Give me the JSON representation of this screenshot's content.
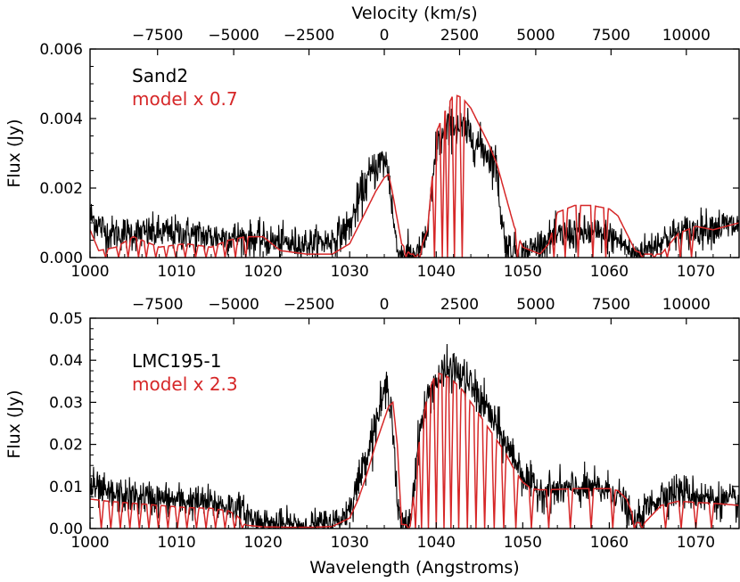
{
  "chart_data": [
    {
      "type": "line",
      "panel": "top",
      "top_axis_label": "Velocity (km/s)",
      "xlabel": "",
      "ylabel": "Flux (Jy)",
      "xlim": [
        1000,
        1075
      ],
      "ylim": [
        0,
        0.006
      ],
      "x_ticks": [
        "1000",
        "1010",
        "1020",
        "1030",
        "1040",
        "1050",
        "1060",
        "1070"
      ],
      "y_ticks": [
        "0.000",
        "0.002",
        "0.004",
        "0.006"
      ],
      "velocity_ticks": [
        "−7500",
        "−5000",
        "−2500",
        "0",
        "2500",
        "5000",
        "7500",
        "10000"
      ],
      "legend": [
        "Sand2",
        "model x 0.7"
      ],
      "series": [
        {
          "name": "Sand2",
          "color": "#000000",
          "noise": 0.0003,
          "x": [
            1000,
            1002,
            1005,
            1008,
            1011,
            1014,
            1017,
            1020,
            1023,
            1026,
            1028,
            1030,
            1031,
            1032,
            1033,
            1034,
            1034.5,
            1035,
            1035.5,
            1036,
            1037,
            1038,
            1039,
            1039.5,
            1040,
            1041,
            1042,
            1043,
            1044,
            1045,
            1046,
            1047,
            1047.5,
            1048,
            1049,
            1050,
            1052,
            1054,
            1056,
            1058,
            1060,
            1061,
            1062,
            1062.5,
            1063,
            1064,
            1066,
            1068,
            1070,
            1072,
            1075
          ],
          "y": [
            0.0012,
            0.0007,
            0.0007,
            0.0007,
            0.0007,
            0.0006,
            0.0006,
            0.0005,
            0.0004,
            0.0004,
            0.0005,
            0.0009,
            0.0016,
            0.0022,
            0.0026,
            0.0028,
            0.0025,
            0.0012,
            0.0002,
            0.0001,
            0.0001,
            0.0001,
            0.0007,
            0.0018,
            0.0032,
            0.0036,
            0.0038,
            0.0037,
            0.0035,
            0.0032,
            0.003,
            0.0026,
            0.0012,
            0.0004,
            0.0002,
            0.0001,
            0.0004,
            0.0006,
            0.0007,
            0.0007,
            0.0006,
            0.0005,
            0.0003,
            0.0001,
            0.0001,
            0.0002,
            0.0005,
            0.0007,
            0.0008,
            0.0009,
            0.0009
          ]
        },
        {
          "name": "model x 0.7",
          "color": "#d62728",
          "x": [
            1000,
            1001,
            1003,
            1005,
            1008,
            1011,
            1014,
            1016,
            1018,
            1020,
            1022,
            1025,
            1028,
            1030,
            1031,
            1032,
            1033,
            1034,
            1034.5,
            1035,
            1036,
            1037,
            1038,
            1039,
            1040,
            1041,
            1042,
            1043,
            1044,
            1045,
            1046,
            1047,
            1048,
            1049,
            1050,
            1052,
            1053,
            1054,
            1056,
            1058,
            1060,
            1061,
            1062,
            1063,
            1064,
            1066,
            1068,
            1070,
            1072,
            1075
          ],
          "y": [
            0.0008,
            0.0002,
            0.0003,
            0.0006,
            0.0003,
            0.0004,
            0.0003,
            0.0005,
            0.0006,
            0.0006,
            0.0002,
            0.0001,
            0.0001,
            0.0004,
            0.0009,
            0.0014,
            0.0019,
            0.0023,
            0.0024,
            0.0018,
            0.0004,
            0.0001,
            0.0001,
            0.0008,
            0.0036,
            0.0042,
            0.0047,
            0.0046,
            0.0043,
            0.0038,
            0.0033,
            0.0027,
            0.0018,
            0.0009,
            0.0003,
            0.0001,
            0.0004,
            0.0013,
            0.0015,
            0.0015,
            0.0014,
            0.0012,
            0.0007,
            0.0002,
            0.0001,
            0.0001,
            0.0007,
            0.0009,
            0.0008,
            0.001
          ]
        }
      ],
      "model_absorption_lines": [
        1001.8,
        1003.3,
        1004.4,
        1005.6,
        1006.5,
        1007.6,
        1008.8,
        1009.9,
        1011.0,
        1012.2,
        1013.4,
        1014.5,
        1015.6,
        1016.8,
        1018.0,
        1036.5,
        1037.6,
        1038.1,
        1039.8,
        1040.7,
        1041.3,
        1042.1,
        1043.0,
        1049.4,
        1053.6,
        1054.9,
        1056.4,
        1058.1,
        1059.6,
        1063.8,
        1065.2,
        1066.7,
        1068.2,
        1069.5
      ]
    },
    {
      "type": "line",
      "panel": "bottom",
      "xlabel": "Wavelength (Angstroms)",
      "ylabel": "Flux (Jy)",
      "xlim": [
        1000,
        1075
      ],
      "ylim": [
        0,
        0.05
      ],
      "x_ticks": [
        "1000",
        "1010",
        "1020",
        "1030",
        "1040",
        "1050",
        "1060",
        "1070"
      ],
      "y_ticks": [
        "0.00",
        "0.01",
        "0.02",
        "0.03",
        "0.04",
        "0.05"
      ],
      "velocity_ticks": [
        "−7500",
        "−5000",
        "−2500",
        "0",
        "2500",
        "5000",
        "7500",
        "10000"
      ],
      "legend": [
        "LMC195-1",
        "model x 2.3"
      ],
      "series": [
        {
          "name": "LMC195-1",
          "color": "#000000",
          "noise": 0.0024,
          "x": [
            1000,
            1002,
            1005,
            1008,
            1011,
            1014,
            1017,
            1019,
            1021,
            1024,
            1027,
            1029,
            1030,
            1031,
            1032,
            1033,
            1034,
            1034.5,
            1035,
            1035.5,
            1036,
            1036.5,
            1037,
            1038,
            1039,
            1040,
            1041,
            1042,
            1043,
            1044,
            1045,
            1046,
            1047,
            1048,
            1049,
            1050,
            1051,
            1052,
            1054,
            1056,
            1058,
            1060,
            1061,
            1062,
            1062.5,
            1063,
            1064,
            1066,
            1068,
            1070,
            1072,
            1075
          ],
          "y": [
            0.01,
            0.008,
            0.0075,
            0.007,
            0.0065,
            0.006,
            0.005,
            0.002,
            0.001,
            0.0008,
            0.001,
            0.002,
            0.005,
            0.011,
            0.018,
            0.025,
            0.032,
            0.034,
            0.025,
            0.005,
            0.001,
            0.001,
            0.002,
            0.022,
            0.031,
            0.035,
            0.037,
            0.038,
            0.036,
            0.034,
            0.031,
            0.028,
            0.024,
            0.02,
            0.017,
            0.013,
            0.01,
            0.009,
            0.009,
            0.0095,
            0.0095,
            0.009,
            0.008,
            0.005,
            0.002,
            0.001,
            0.004,
            0.008,
            0.009,
            0.008,
            0.007,
            0.006
          ]
        },
        {
          "name": "model x 2.3",
          "color": "#d62728",
          "x": [
            1000,
            1002,
            1005,
            1008,
            1011,
            1014,
            1016,
            1017,
            1018,
            1020,
            1023,
            1026,
            1028,
            1030,
            1031,
            1032,
            1033,
            1034,
            1034.5,
            1035,
            1035.5,
            1036,
            1037,
            1038,
            1039,
            1040,
            1041,
            1042,
            1043,
            1044,
            1045,
            1046,
            1047,
            1048,
            1049,
            1050,
            1051,
            1052,
            1054,
            1056,
            1058,
            1060,
            1061,
            1062,
            1063,
            1064,
            1066,
            1068,
            1070,
            1072,
            1075
          ],
          "y": [
            0.007,
            0.0065,
            0.006,
            0.0055,
            0.005,
            0.0048,
            0.0042,
            0.003,
            0.0008,
            0.0004,
            0.0003,
            0.0003,
            0.0005,
            0.0025,
            0.007,
            0.013,
            0.02,
            0.026,
            0.029,
            0.03,
            0.02,
            0.001,
            0.0008,
            0.02,
            0.032,
            0.037,
            0.0365,
            0.035,
            0.033,
            0.03,
            0.027,
            0.024,
            0.021,
            0.018,
            0.014,
            0.011,
            0.0095,
            0.0092,
            0.0093,
            0.0095,
            0.0095,
            0.0095,
            0.009,
            0.007,
            0.0015,
            0.0012,
            0.0055,
            0.0065,
            0.0062,
            0.006,
            0.0055
          ]
        }
      ],
      "model_absorption_lines": [
        1001.3,
        1002.4,
        1003.5,
        1004.6,
        1005.7,
        1006.8,
        1007.9,
        1009.0,
        1010.1,
        1011.2,
        1012.3,
        1013.4,
        1014.5,
        1015.6,
        1016.7,
        1017.6,
        1036.8,
        1037.6,
        1038.3,
        1039.1,
        1040.0,
        1040.9,
        1041.7,
        1042.6,
        1043.6,
        1044.6,
        1045.6,
        1046.7,
        1047.8,
        1049.2,
        1051.0,
        1053.0,
        1055.5,
        1057.9,
        1060.4,
        1062.9,
        1063.8,
        1066.5,
        1068.3,
        1070.0,
        1071.8
      ]
    }
  ]
}
